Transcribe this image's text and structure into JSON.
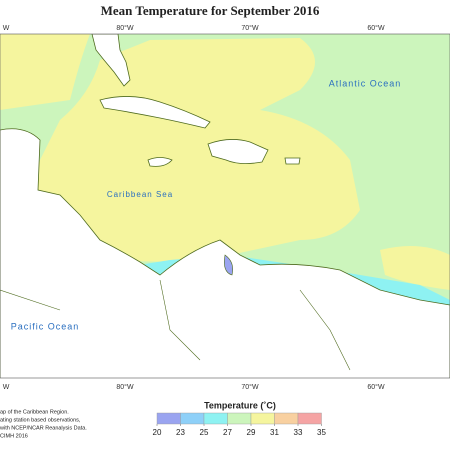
{
  "title": "Mean Temperature for September 2016",
  "longitude_labels_top": [
    "W",
    "80°W",
    "70°W",
    "60°W"
  ],
  "longitude_labels_bottom": [
    "W",
    "80°W",
    "70°W",
    "60°W"
  ],
  "region_labels": [
    "Atlantic Ocean",
    "Caribbean Sea",
    "Pacific Ocean"
  ],
  "legend": {
    "title": "Temperature (˚C)",
    "ticks": [
      20,
      23,
      25,
      27,
      29,
      31,
      33,
      35
    ],
    "colors": [
      "#9aa4f0",
      "#8ed0f8",
      "#8ef2f2",
      "#ccf5bc",
      "#f5f59e",
      "#f8d0a0",
      "#f5a4a4"
    ]
  },
  "footnote": [
    "ap of the Caribbean Region.",
    "ating station based observations,",
    "with NCEP/NCAR Reanalysis Data.",
    "CIMH 2016"
  ]
}
